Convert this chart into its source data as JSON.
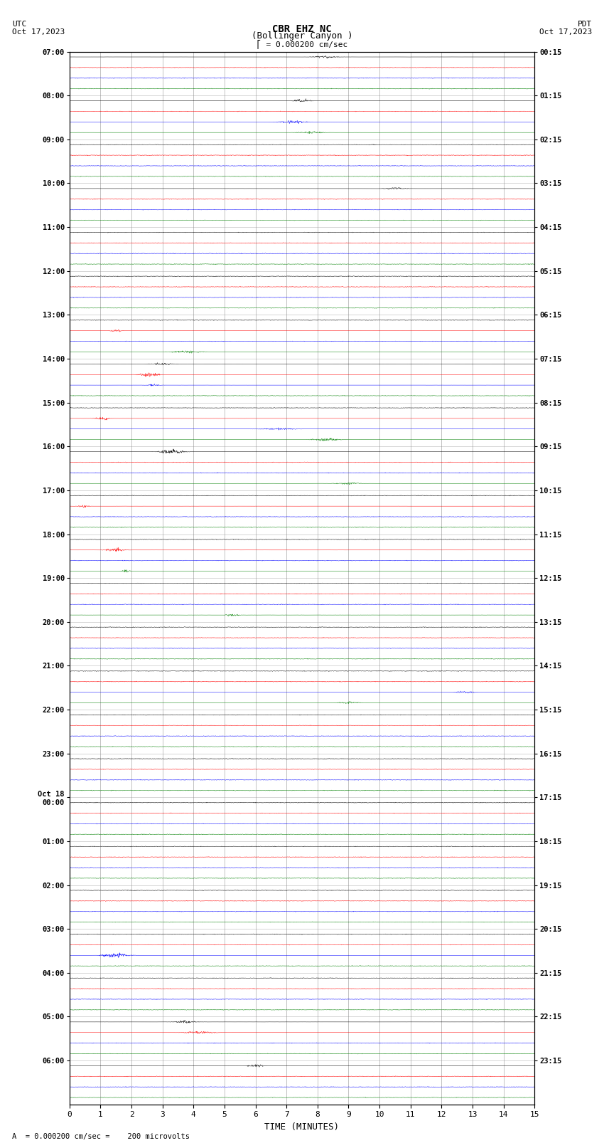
{
  "title_line1": "CBR EHZ NC",
  "title_line2": "(Bollinger Canyon )",
  "scale_text": "= 0.000200 cm/sec",
  "bottom_text": "A  = 0.000200 cm/sec =    200 microvolts",
  "utc_label": "UTC",
  "utc_date": "Oct 17,2023",
  "pdt_label": "PDT",
  "pdt_date": "Oct 17,2023",
  "xlabel": "TIME (MINUTES)",
  "left_times": [
    "07:00",
    "08:00",
    "09:00",
    "10:00",
    "11:00",
    "12:00",
    "13:00",
    "14:00",
    "15:00",
    "16:00",
    "17:00",
    "18:00",
    "19:00",
    "20:00",
    "21:00",
    "22:00",
    "23:00",
    "Oct 18\n00:00",
    "01:00",
    "02:00",
    "03:00",
    "04:00",
    "05:00",
    "06:00"
  ],
  "right_times": [
    "00:15",
    "01:15",
    "02:15",
    "03:15",
    "04:15",
    "05:15",
    "06:15",
    "07:15",
    "08:15",
    "09:15",
    "10:15",
    "11:15",
    "12:15",
    "13:15",
    "14:15",
    "15:15",
    "16:15",
    "17:15",
    "18:15",
    "19:15",
    "20:15",
    "21:15",
    "22:15",
    "23:15"
  ],
  "colors": [
    "black",
    "red",
    "blue",
    "green"
  ],
  "n_groups": 24,
  "n_channels": 4,
  "time_min": 0,
  "time_max": 15,
  "background_color": "white",
  "grid_color": "#888888",
  "amplitude_scale": 0.28,
  "seed": 42
}
